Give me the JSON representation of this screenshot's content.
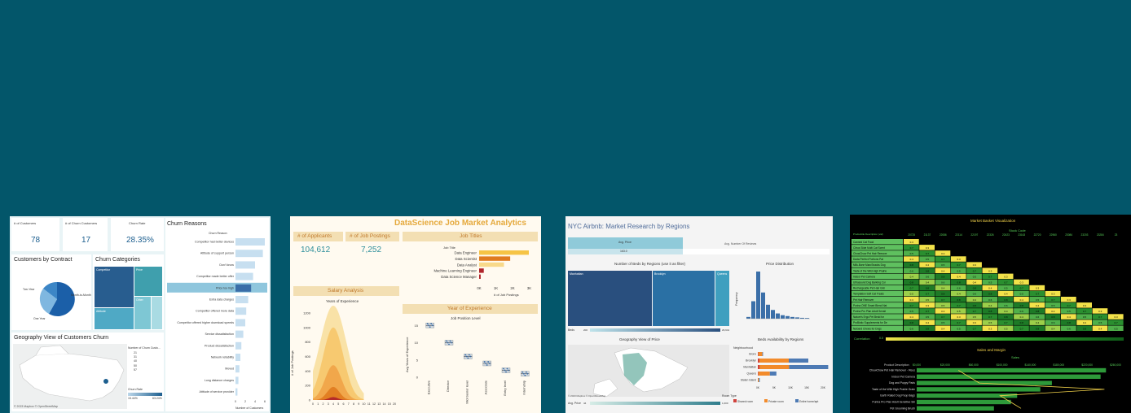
{
  "dash1": {
    "kpis": [
      {
        "label": "# of Customers",
        "value": "78"
      },
      {
        "label": "# of Churn Customers",
        "value": "17"
      },
      {
        "label": "Churn Rate",
        "value": "28.35%"
      }
    ],
    "contract_title": "Customers by Contract",
    "contract_labels": [
      "Two Year",
      "Month-to-Month",
      "One Year"
    ],
    "categories_title": "Churn Categories",
    "category_labels": [
      "Competitor",
      "Price",
      "Attitude",
      "Other"
    ],
    "reasons_title": "Churn Reasons",
    "reasons_header": "Churn Reason",
    "reasons": [
      {
        "label": "Competitor had better devices",
        "value": 6.0
      },
      {
        "label": "Attitude of support person",
        "value": 5.6
      },
      {
        "label": "Don't know",
        "value": 4.0
      },
      {
        "label": "Competitor made better offer",
        "value": 3.6
      },
      {
        "label": "Price too high",
        "value": 3.2
      },
      {
        "label": "Extra data charges",
        "value": 2.6
      },
      {
        "label": "Competitor offered more data",
        "value": 2.2
      },
      {
        "label": "Competitor offered higher download speeds",
        "value": 2.0
      },
      {
        "label": "Service dissatisfaction",
        "value": 1.6
      },
      {
        "label": "Product dissatisfaction",
        "value": 1.2
      },
      {
        "label": "Network reliability",
        "value": 1.0
      },
      {
        "label": "Moved",
        "value": 0.8
      },
      {
        "label": "Long distance charges",
        "value": 0.6
      },
      {
        "label": "Attitude of service provider",
        "value": 0.4
      }
    ],
    "axis_ticks": [
      "0",
      "2",
      "4",
      "6"
    ],
    "axis_label": "Number of Customers",
    "geo_title": "Geography View of Customers Churn",
    "legend_title": "Number of Churn Custo...",
    "legend_items": [
      "21",
      "31",
      "40",
      "50",
      "57"
    ],
    "churn_rate_label": "Churn Rate",
    "churn_rate_min": "15.44%",
    "churn_rate_max": "63.24%",
    "attribution": "© 2023 Mapbox © OpenStreetMap"
  },
  "dash2": {
    "title": "DataScience Job Market Analytics",
    "kpis": [
      {
        "label": "# of Applicants",
        "value": "104,612"
      },
      {
        "label": "# of Job Postings",
        "value": "7,252"
      }
    ],
    "job_titles_title": "Job Titles",
    "job_title_header": "Job Title",
    "job_titles": [
      {
        "label": "Data Engineer",
        "value": 3.2,
        "color": "#f6c445"
      },
      {
        "label": "Data Scientist",
        "value": 2.0,
        "color": "#e07b1f"
      },
      {
        "label": "Data Analyst",
        "value": 1.6,
        "color": "#f8d98a"
      },
      {
        "label": "Machine Learning Engineer",
        "value": 0.3,
        "color": "#b0242a"
      },
      {
        "label": "Data Science Manager",
        "value": 0.1,
        "color": "#b0242a"
      }
    ],
    "job_ticks": [
      "0K",
      "1K",
      "2K",
      "3K"
    ],
    "job_axis_label": "# of Job Postings",
    "salary_title": "Salary Analysis",
    "salary_chart_title": "Years of Experience",
    "salary_y_label": "# of Job Postings",
    "salary_y_ticks": [
      "0",
      "200",
      "400",
      "600",
      "800",
      "1000",
      "1200"
    ],
    "salary_x_ticks": [
      "0",
      "1",
      "2",
      "3",
      "4",
      "5",
      "6",
      "7",
      "8",
      "9",
      "10",
      "11",
      "12",
      "13",
      "14",
      "15",
      "20"
    ],
    "exp_title": "Year of Experience",
    "exp_chart_title": "Job Position Level",
    "exp_y_label": "Avg Years of Experience",
    "exp_y_ticks": [
      "0",
      "5",
      "10",
      "15"
    ],
    "exp_levels": [
      {
        "label": "Executive",
        "median": 15
      },
      {
        "label": "Director",
        "median": 10
      },
      {
        "label": "Mid-Senior level",
        "median": 6
      },
      {
        "label": "Associate",
        "median": 4
      },
      {
        "label": "Entry level",
        "median": 2
      },
      {
        "label": "Internship",
        "median": 1
      }
    ]
  },
  "dash3": {
    "title": "NYC Airbnb: Market Research by Regions",
    "tab_avg_price": "Avg. Price",
    "tab_avg_price_value": "163.0",
    "tab_reviews": "Avg. Number Of Reviews",
    "beds_title": "Number of Beds by Regions (use it as filter)",
    "regions": [
      "Manhattan",
      "Brooklyn",
      "Queens"
    ],
    "beds_label": "Beds",
    "beds_min": "200",
    "beds_max": "29,941",
    "price_dist_title": "Price Distribution",
    "freq_label": "Frequency",
    "geo_title": "Geography View of Price",
    "avg_price_label": "Avg. Price",
    "avg_price_min": "44",
    "avg_price_max": "1,000",
    "attribution": "© 2023 Mapbox © OpenStreetMap",
    "beds_avail_title": "Beds Availability by Regions",
    "neigh_label": "Neighbourhood",
    "neigh": [
      "Bronx",
      "Brooklyn",
      "Manhattan",
      "Queens",
      "Staten Island"
    ],
    "avail_ticks": [
      "0K",
      "5K",
      "10K",
      "15K",
      "20K"
    ],
    "room_type_label": "Room Type",
    "room_types": [
      {
        "label": "Shared room",
        "color": "#d0423c"
      },
      {
        "label": "Private room",
        "color": "#f28b2b"
      },
      {
        "label": "Entire home/apt",
        "color": "#4d7ab4"
      }
    ]
  },
  "dash4": {
    "title": "Market Basket Visualization",
    "subtitle": "Stock Code",
    "row_header": "Productitle Description (val)",
    "codes": [
      "20725",
      "21137",
      "22086",
      "22114",
      "22197",
      "22326",
      "22423",
      "23163",
      "22720",
      "22960",
      "23084",
      "23203",
      "23284",
      "23"
    ],
    "products": [
      "Canned Cat Food",
      "Citrus Slide Multi Cat Scent",
      "ChowChow Pet Hair Remove",
      "Dada Perfect Portions Pat",
      "Milk-Bone MaroSnacks Dog",
      "Taste of the Wild High Prairie",
      "Indoor Pet Camera",
      "Ultrasound Dog Barking Cor",
      "Rechargeable Pet Hair Grin",
      "Temptation Soft Cat Treats",
      "Pet Hair Remover",
      "Purina ONE Smart Blend Nat",
      "Purina Pro Plan Adult Sensit",
      "Nature's Ergo Pet Bedd for",
      "ProBiotic Supplements for De",
      "NaGard Chews for Dogs"
    ],
    "correlation_label": "Correlation",
    "correlation_min": "0.0",
    "sales_title": "Sales and Margin",
    "sales_subtitle": "Sales",
    "sales_header": "Product Description",
    "sales_ticks": [
      "$0,000",
      "$20,000",
      "$60,000",
      "$100,000",
      "$140,000",
      "$180,000",
      "$220,000",
      "$260,000"
    ],
    "sales_products": [
      {
        "label": "ChowChow Pet Hair Remover - Reus",
        "value": 245000
      },
      {
        "label": "Indoor Pet Camera",
        "value": 238000
      },
      {
        "label": "Dog and Puppy Pads",
        "value": 175000
      },
      {
        "label": "Taste of the Wild High Prairie Grain",
        "value": 160000
      },
      {
        "label": "Earth Rated Dog Poop Bags",
        "value": 130000
      },
      {
        "label": "Purina Pro Plan Adult Sensitive Ski",
        "value": 122000
      },
      {
        "label": "Pet Grooming Brush",
        "value": 100000
      }
    ]
  }
}
